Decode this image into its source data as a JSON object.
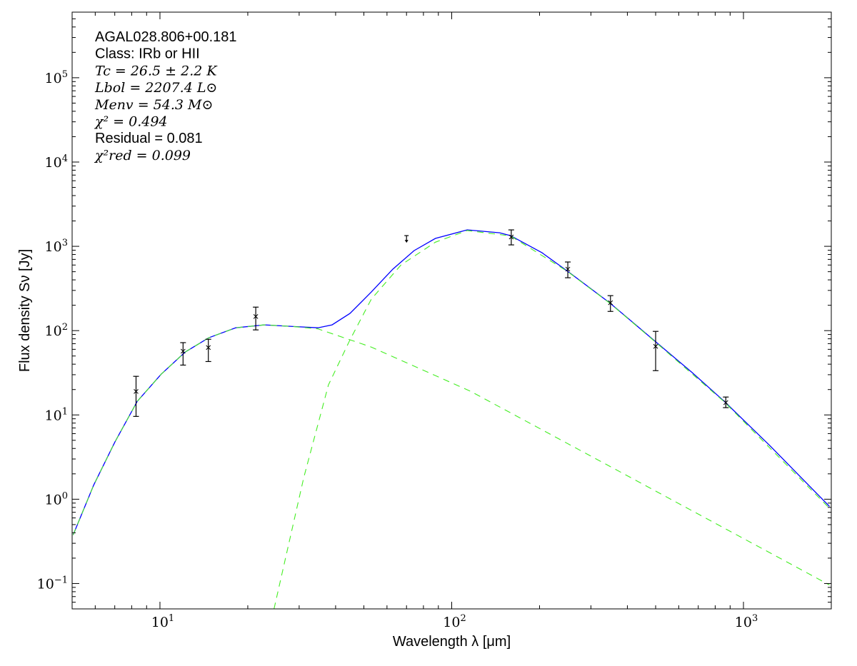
{
  "chart_data": {
    "type": "scatter",
    "xlabel": "Wavelength λ [μm]",
    "ylabel": "Flux density Sν [Jy]",
    "xscale": "log",
    "yscale": "log",
    "xlim": [
      5,
      2000
    ],
    "ylim": [
      0.05,
      600000
    ],
    "grid": false,
    "x_ticks": [
      {
        "value": 10,
        "base": "10",
        "exp": "1"
      },
      {
        "value": 100,
        "base": "10",
        "exp": "2"
      },
      {
        "value": 1000,
        "base": "10",
        "exp": "3"
      }
    ],
    "y_ticks": [
      {
        "value": 0.1,
        "base": "10",
        "exp": "−1"
      },
      {
        "value": 1,
        "base": "10",
        "exp": "0"
      },
      {
        "value": 10,
        "base": "10",
        "exp": "1"
      },
      {
        "value": 100,
        "base": "10",
        "exp": "2"
      },
      {
        "value": 1000,
        "base": "10",
        "exp": "3"
      },
      {
        "value": 10000,
        "base": "10",
        "exp": "4"
      },
      {
        "value": 100000,
        "base": "10",
        "exp": "5"
      }
    ],
    "annotations": [
      {
        "text": "AGAL028.806+00.181",
        "style": "sans"
      },
      {
        "text": "Class: IRb or HII",
        "style": "sans"
      },
      {
        "text": "Tc = 26.5 ± 2.2 K",
        "style": "math"
      },
      {
        "text": "Lbol = 2207.4 L⊙",
        "style": "math"
      },
      {
        "text": "Menv = 54.3 M⊙",
        "style": "math"
      },
      {
        "text": "χ² = 0.494",
        "style": "math"
      },
      {
        "text": "Residual = 0.081",
        "style": "sans"
      },
      {
        "text": "χ²red = 0.099",
        "style": "math"
      }
    ],
    "points": [
      {
        "x": 8.28,
        "y": 19,
        "yerr_low": 9.6,
        "yerr_high": 28.7
      },
      {
        "x": 12,
        "y": 57,
        "yerr_low": 39,
        "yerr_high": 72
      },
      {
        "x": 14.65,
        "y": 63,
        "yerr_low": 43,
        "yerr_high": 79
      },
      {
        "x": 21.3,
        "y": 147,
        "yerr_low": 102,
        "yerr_high": 190
      },
      {
        "x": 160,
        "y": 1290,
        "yerr_low": 1040,
        "yerr_high": 1567
      },
      {
        "x": 250,
        "y": 536,
        "yerr_low": 424,
        "yerr_high": 652
      },
      {
        "x": 350,
        "y": 214,
        "yerr_low": 169,
        "yerr_high": 260
      },
      {
        "x": 500,
        "y": 65,
        "yerr_low": 33.5,
        "yerr_high": 98
      },
      {
        "x": 870,
        "y": 14,
        "yerr_low": 12.2,
        "yerr_high": 16.3
      }
    ],
    "upper_limits": [
      {
        "x": 70,
        "y": 1340
      }
    ],
    "series": [
      {
        "style": "solid",
        "color": "#0000ff",
        "x": [
          5.04,
          5.93,
          7.01,
          8.36,
          10.1,
          12.2,
          14.7,
          18.2,
          22.8,
          28.6,
          34.8,
          38.9,
          44.8,
          53.0,
          62.8,
          74.3,
          87.9,
          113,
          146,
          159,
          204,
          248,
          348,
          495,
          664,
          859,
          1231,
          1972
        ],
        "y": [
          0.377,
          1.48,
          4.77,
          14.5,
          30.4,
          55.7,
          82.2,
          108,
          117,
          112,
          108,
          117,
          160,
          287,
          536,
          889,
          1240,
          1567,
          1449,
          1340,
          839,
          515,
          214,
          76,
          32.2,
          14.5,
          4.33,
          0.82
        ]
      },
      {
        "style": "dashed",
        "color": "#44ee22",
        "x": [
          5.04,
          5.93,
          7.01,
          8.36,
          10.1,
          12.2,
          14.7,
          18.2,
          22.8,
          28.6,
          34.8,
          53.0,
          116,
          338,
          1972
        ],
        "y": [
          0.377,
          1.48,
          4.77,
          14.5,
          30.4,
          55.7,
          82.2,
          108,
          117,
          112,
          105,
          63.8,
          19.1,
          2.6,
          0.096
        ]
      },
      {
        "style": "dashed",
        "color": "#44ee22",
        "x": [
          24.6,
          31.1,
          37.8,
          44.8,
          53.0,
          67,
          87.9,
          113,
          159,
          248,
          348,
          495,
          859,
          1972
        ],
        "y": [
          0.05,
          1.8,
          22.7,
          77.6,
          236,
          600,
          1120,
          1540,
          1330,
          510,
          212,
          75,
          14.3,
          0.78
        ]
      }
    ]
  }
}
